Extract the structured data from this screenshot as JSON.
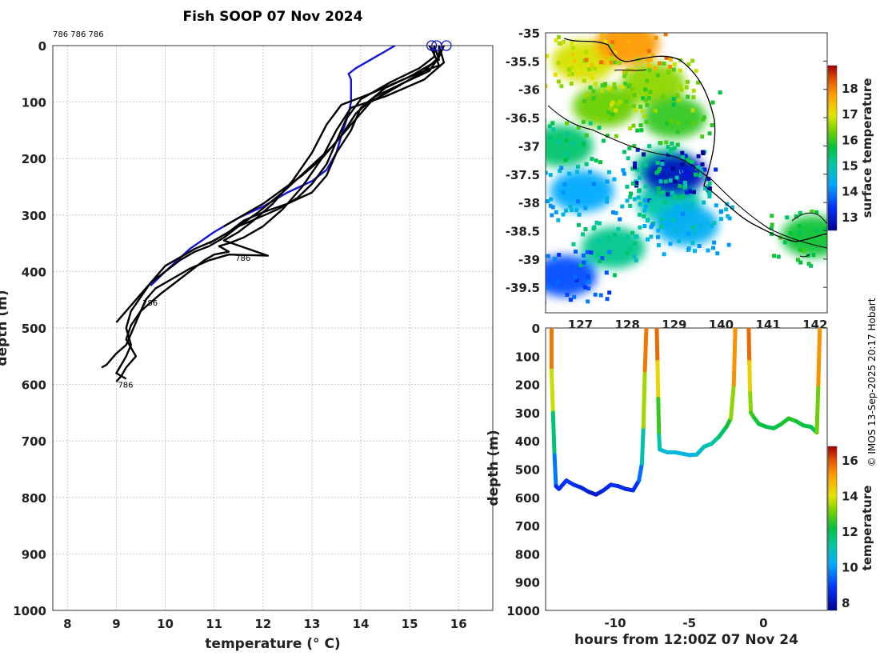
{
  "title": "Fish SOOP 07 Nov 2024",
  "top_annotation": "786 786 786",
  "credit": "© IMOS 13-Sep-2025 20:17 Hobart",
  "chart_data": [
    {
      "name": "temperature-depth-profiles",
      "type": "line",
      "xlabel": "temperature (° C)",
      "ylabel": "depth (m)",
      "xlim": [
        7.7,
        16.7
      ],
      "ylim": [
        1000,
        0
      ],
      "xticks": [
        8,
        9,
        10,
        11,
        12,
        13,
        14,
        15,
        16
      ],
      "yticks": [
        0,
        100,
        200,
        300,
        400,
        500,
        600,
        700,
        800,
        900,
        1000
      ],
      "grid": true,
      "profile_labels": [
        {
          "text": "786",
          "temp": 11.4,
          "depth": 375
        },
        {
          "text": "786",
          "temp": 9.5,
          "depth": 455
        },
        {
          "text": "786",
          "temp": 9.0,
          "depth": 600
        }
      ],
      "surface_markers": [
        15.45,
        15.55,
        15.75
      ],
      "series": [
        {
          "name": "climatology",
          "color": "#1414d8",
          "temp": [
            14.7,
            14.5,
            14.2,
            13.9,
            13.75,
            13.8,
            13.8,
            13.75,
            13.6,
            13.5,
            13.3,
            13.0,
            12.5,
            12.0,
            11.5,
            11.0,
            10.5,
            10.0,
            9.7
          ],
          "depth": [
            0,
            10,
            25,
            40,
            50,
            60,
            100,
            120,
            160,
            190,
            220,
            240,
            260,
            285,
            305,
            330,
            360,
            400,
            425
          ]
        },
        {
          "name": "profile-1",
          "color": "#000000",
          "temp": [
            15.6,
            15.7,
            15.3,
            14.5,
            13.8,
            13.5,
            13.2,
            12.8,
            12.4,
            12.0,
            11.6,
            11.3,
            11.1,
            11.3,
            11.0,
            10.8,
            10.5,
            10.2,
            9.9,
            9.7,
            9.5,
            9.4,
            9.3,
            9.2,
            9.0,
            8.9,
            8.8,
            8.7
          ],
          "depth": [
            0,
            30,
            60,
            90,
            110,
            150,
            200,
            250,
            290,
            320,
            340,
            350,
            355,
            365,
            370,
            380,
            400,
            420,
            440,
            455,
            470,
            490,
            510,
            530,
            545,
            555,
            565,
            570
          ]
        },
        {
          "name": "profile-2",
          "color": "#000000",
          "temp": [
            15.5,
            15.6,
            15.0,
            14.2,
            13.6,
            13.3,
            13.0,
            12.6,
            12.2,
            11.8,
            11.5,
            11.2,
            12.1,
            11.3,
            10.9,
            10.5,
            10.1,
            9.8,
            9.6,
            9.5,
            9.3,
            9.2,
            9.4,
            9.2,
            9.1,
            9.0
          ],
          "depth": [
            0,
            25,
            55,
            85,
            105,
            140,
            190,
            240,
            280,
            310,
            330,
            345,
            372,
            370,
            380,
            395,
            415,
            430,
            450,
            470,
            495,
            520,
            550,
            570,
            585,
            595
          ]
        },
        {
          "name": "profile-3",
          "color": "#000000",
          "temp": [
            15.7,
            15.6,
            15.3,
            14.8,
            14.2,
            13.8,
            13.4,
            12.9,
            12.4,
            11.9,
            11.5,
            11.2,
            10.9,
            10.6,
            10.3,
            10.0,
            9.7,
            9.5,
            9.3,
            9.2,
            9.3,
            9.2,
            9.1,
            9.0,
            9.2
          ],
          "depth": [
            0,
            20,
            45,
            70,
            100,
            140,
            180,
            220,
            260,
            295,
            320,
            340,
            355,
            365,
            380,
            400,
            420,
            445,
            470,
            500,
            530,
            550,
            565,
            580,
            590
          ]
        },
        {
          "name": "profile-4",
          "color": "#000000",
          "temp": [
            15.4,
            15.5,
            15.6,
            15.0,
            14.5,
            14.0,
            13.8,
            13.5,
            13.3,
            13.0,
            12.5,
            12.0,
            11.6,
            11.3,
            11.0,
            10.6,
            10.3,
            10.0,
            9.8,
            9.6,
            9.4,
            9.2,
            9.0
          ],
          "depth": [
            0,
            15,
            35,
            55,
            75,
            110,
            150,
            190,
            230,
            260,
            280,
            295,
            310,
            330,
            345,
            360,
            375,
            390,
            410,
            430,
            450,
            470,
            490
          ]
        },
        {
          "name": "profile-5",
          "color": "#000000",
          "temp": [
            15.5,
            15.5,
            15.2,
            14.6,
            14.0,
            13.7,
            13.5,
            13.3,
            13.0,
            12.7,
            12.3,
            11.9,
            11.5,
            11.2,
            10.9
          ],
          "depth": [
            0,
            20,
            40,
            65,
            95,
            130,
            170,
            210,
            245,
            270,
            290,
            305,
            320,
            335,
            350
          ]
        },
        {
          "name": "profile-6",
          "color": "#000000",
          "temp": [
            15.6,
            15.6,
            15.4,
            14.9,
            14.3,
            13.9,
            13.6,
            13.2,
            12.8,
            12.4,
            12.0,
            11.6,
            11.2
          ],
          "depth": [
            0,
            20,
            45,
            65,
            90,
            120,
            160,
            200,
            230,
            255,
            280,
            300,
            320
          ]
        }
      ]
    },
    {
      "name": "surface-temperature-map",
      "type": "heatmap",
      "xlim": [
        126.1,
        142.3
      ],
      "ylim": [
        -39.95,
        -35
      ],
      "xticks": [
        127,
        128,
        129,
        140,
        141,
        142
      ],
      "xtick_labels": [
        "127",
        "128",
        "129",
        "140",
        "141",
        "142"
      ],
      "yticks": [
        -35,
        -35.5,
        -36,
        -36.5,
        -37,
        -37.5,
        -38,
        -38.5,
        -39,
        -39.5
      ],
      "ytick_labels": [
        "-35",
        "-35.5",
        "-36",
        "-36.5",
        "-37",
        "-37.5",
        "-38",
        "-38.5",
        "-39",
        "-39.5"
      ],
      "colorbar": {
        "label": "surface temperature",
        "range": [
          12.5,
          18.9
        ],
        "ticks": [
          13,
          14,
          15,
          16,
          17,
          18
        ]
      },
      "patches": [
        {
          "lon": 128.3,
          "lat": -35.5,
          "value": 16.9
        },
        {
          "lon": 130.8,
          "lat": -35.2,
          "value": 17.8
        },
        {
          "lon": 132.3,
          "lat": -35.9,
          "value": 16.5
        },
        {
          "lon": 129.5,
          "lat": -36.3,
          "value": 16.3
        },
        {
          "lon": 133.5,
          "lat": -36.5,
          "value": 16.0
        },
        {
          "lon": 127.0,
          "lat": -37.0,
          "value": 15.4
        },
        {
          "lon": 133.0,
          "lat": -37.4,
          "value": 15.2
        },
        {
          "lon": 128.2,
          "lat": -37.8,
          "value": 14.3
        },
        {
          "lon": 133.2,
          "lat": -38.0,
          "value": 15.0
        },
        {
          "lon": 134.2,
          "lat": -38.4,
          "value": 14.4
        },
        {
          "lon": 130.0,
          "lat": -38.8,
          "value": 15.2
        },
        {
          "lon": 127.2,
          "lat": -39.3,
          "value": 13.6
        },
        {
          "lon": 133.5,
          "lat": -37.5,
          "value": 12.9
        },
        {
          "lon": 141.5,
          "lat": -38.6,
          "value": 15.8
        }
      ]
    },
    {
      "name": "temperature-section",
      "type": "scatter",
      "xlabel": "hours from 12:00Z 07 Nov 24",
      "ylabel": "depth (m)",
      "xlim": [
        -14.7,
        4.3
      ],
      "ylim": [
        1000,
        0
      ],
      "xticks": [
        -10,
        -5,
        0
      ],
      "yticks": [
        0,
        100,
        200,
        300,
        400,
        500,
        600,
        700,
        800,
        900,
        1000
      ],
      "colorbar": {
        "label": "temperature",
        "range": [
          7.6,
          16.8
        ],
        "ticks": [
          8,
          10,
          12,
          14,
          16
        ]
      },
      "casts": [
        {
          "hours": [
            -14.3,
            -14.3,
            -14.2,
            -14.1,
            -14.0,
            -13.8,
            -13.3,
            -12.8,
            -12.3,
            -11.8,
            -11.3,
            -10.8,
            -10.3,
            -9.8,
            -9.3,
            -8.8,
            -8.4,
            -8.2,
            -8.1,
            -8.0,
            -7.9
          ],
          "depth": [
            0,
            150,
            300,
            450,
            560,
            570,
            540,
            555,
            565,
            580,
            590,
            575,
            555,
            560,
            570,
            575,
            540,
            480,
            350,
            150,
            0
          ]
        },
        {
          "hours": [
            -7.2,
            -7.15,
            -7.1,
            -7.05,
            -7.0,
            -6.5,
            -6.0,
            -5.5,
            -5.0,
            -4.5,
            -4.0,
            -3.5,
            -3.0,
            -2.5,
            -2.2,
            -2.0,
            -1.9
          ],
          "depth": [
            0,
            120,
            250,
            380,
            430,
            440,
            440,
            445,
            450,
            448,
            420,
            410,
            385,
            350,
            320,
            200,
            0
          ]
        },
        {
          "hours": [
            -1.0,
            -0.95,
            -0.9,
            -0.85,
            -0.6,
            -0.3,
            0.2,
            0.7,
            1.2,
            1.7,
            2.2,
            2.7,
            3.2,
            3.4,
            3.6,
            3.7,
            3.8
          ],
          "depth": [
            0,
            120,
            230,
            300,
            320,
            340,
            350,
            355,
            340,
            320,
            330,
            345,
            350,
            360,
            370,
            200,
            0
          ]
        }
      ]
    }
  ]
}
